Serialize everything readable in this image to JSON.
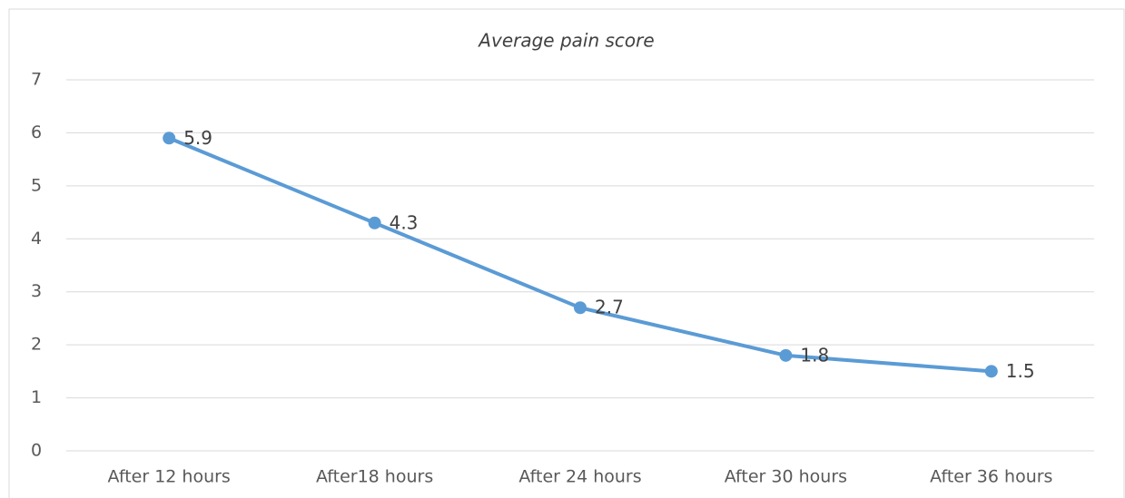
{
  "chart_data": {
    "type": "line",
    "title": "Average pain score",
    "categories": [
      "After 12 hours",
      "After18 hours",
      "After 24 hours",
      "After 30 hours",
      "After 36 hours"
    ],
    "values": [
      5.9,
      4.3,
      2.7,
      1.8,
      1.5
    ],
    "color": "#5b9bd5",
    "ylim": [
      0,
      7
    ],
    "yticks": [
      0,
      1,
      2,
      3,
      4,
      5,
      6,
      7
    ],
    "grid": true
  }
}
